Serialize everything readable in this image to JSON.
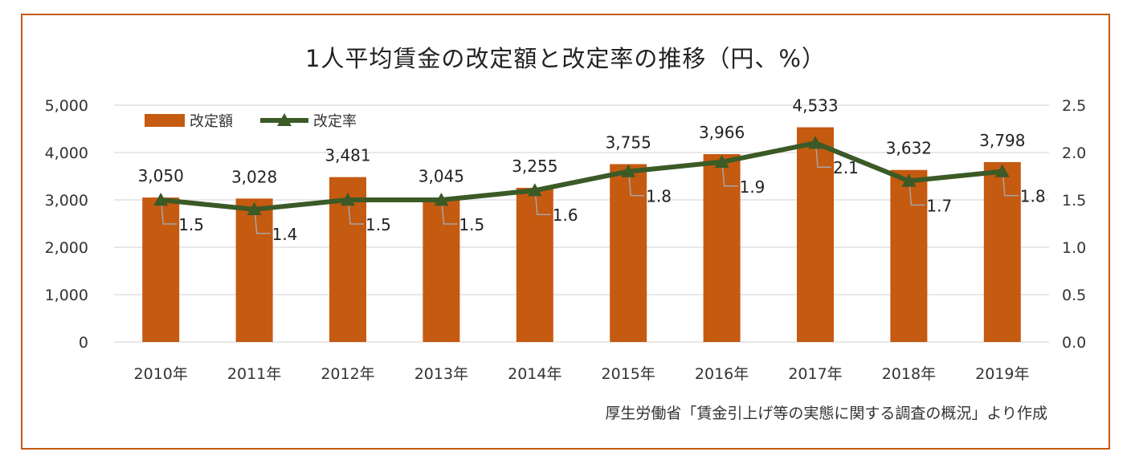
{
  "chart_data": {
    "type": "bar+line",
    "title": "1人平均賃金の改定額と改定率の推移（円、%）",
    "categories": [
      "2010年",
      "2011年",
      "2012年",
      "2013年",
      "2014年",
      "2015年",
      "2016年",
      "2017年",
      "2018年",
      "2019年"
    ],
    "series": [
      {
        "name": "改定額",
        "type": "bar",
        "axis": "left",
        "color": "#c55a11",
        "values": [
          3050,
          3028,
          3481,
          3045,
          3255,
          3755,
          3966,
          4533,
          3632,
          3798
        ],
        "labels": [
          "3,050",
          "3,028",
          "3,481",
          "3,045",
          "3,255",
          "3,755",
          "3,966",
          "4,533",
          "3,632",
          "3,798"
        ]
      },
      {
        "name": "改定率",
        "type": "line",
        "axis": "right",
        "color": "#3b5a26",
        "values": [
          1.5,
          1.4,
          1.5,
          1.5,
          1.6,
          1.8,
          1.9,
          2.1,
          1.7,
          1.8
        ],
        "labels": [
          "1.5",
          "1.4",
          "1.5",
          "1.5",
          "1.6",
          "1.8",
          "1.9",
          "2.1",
          "1.7",
          "1.8"
        ]
      }
    ],
    "y_left": {
      "min": 0,
      "max": 5000,
      "ticks": [
        "0",
        "1,000",
        "2,000",
        "3,000",
        "4,000",
        "5,000"
      ]
    },
    "y_right": {
      "min": 0,
      "max": 2.5,
      "ticks": [
        "0.0",
        "0.5",
        "1.0",
        "1.5",
        "2.0",
        "2.5"
      ]
    },
    "grid": true,
    "legend_position": "top-left",
    "source": "厚生労働省「賃金引上げ等の実態に関する調査の概況」より作成"
  }
}
